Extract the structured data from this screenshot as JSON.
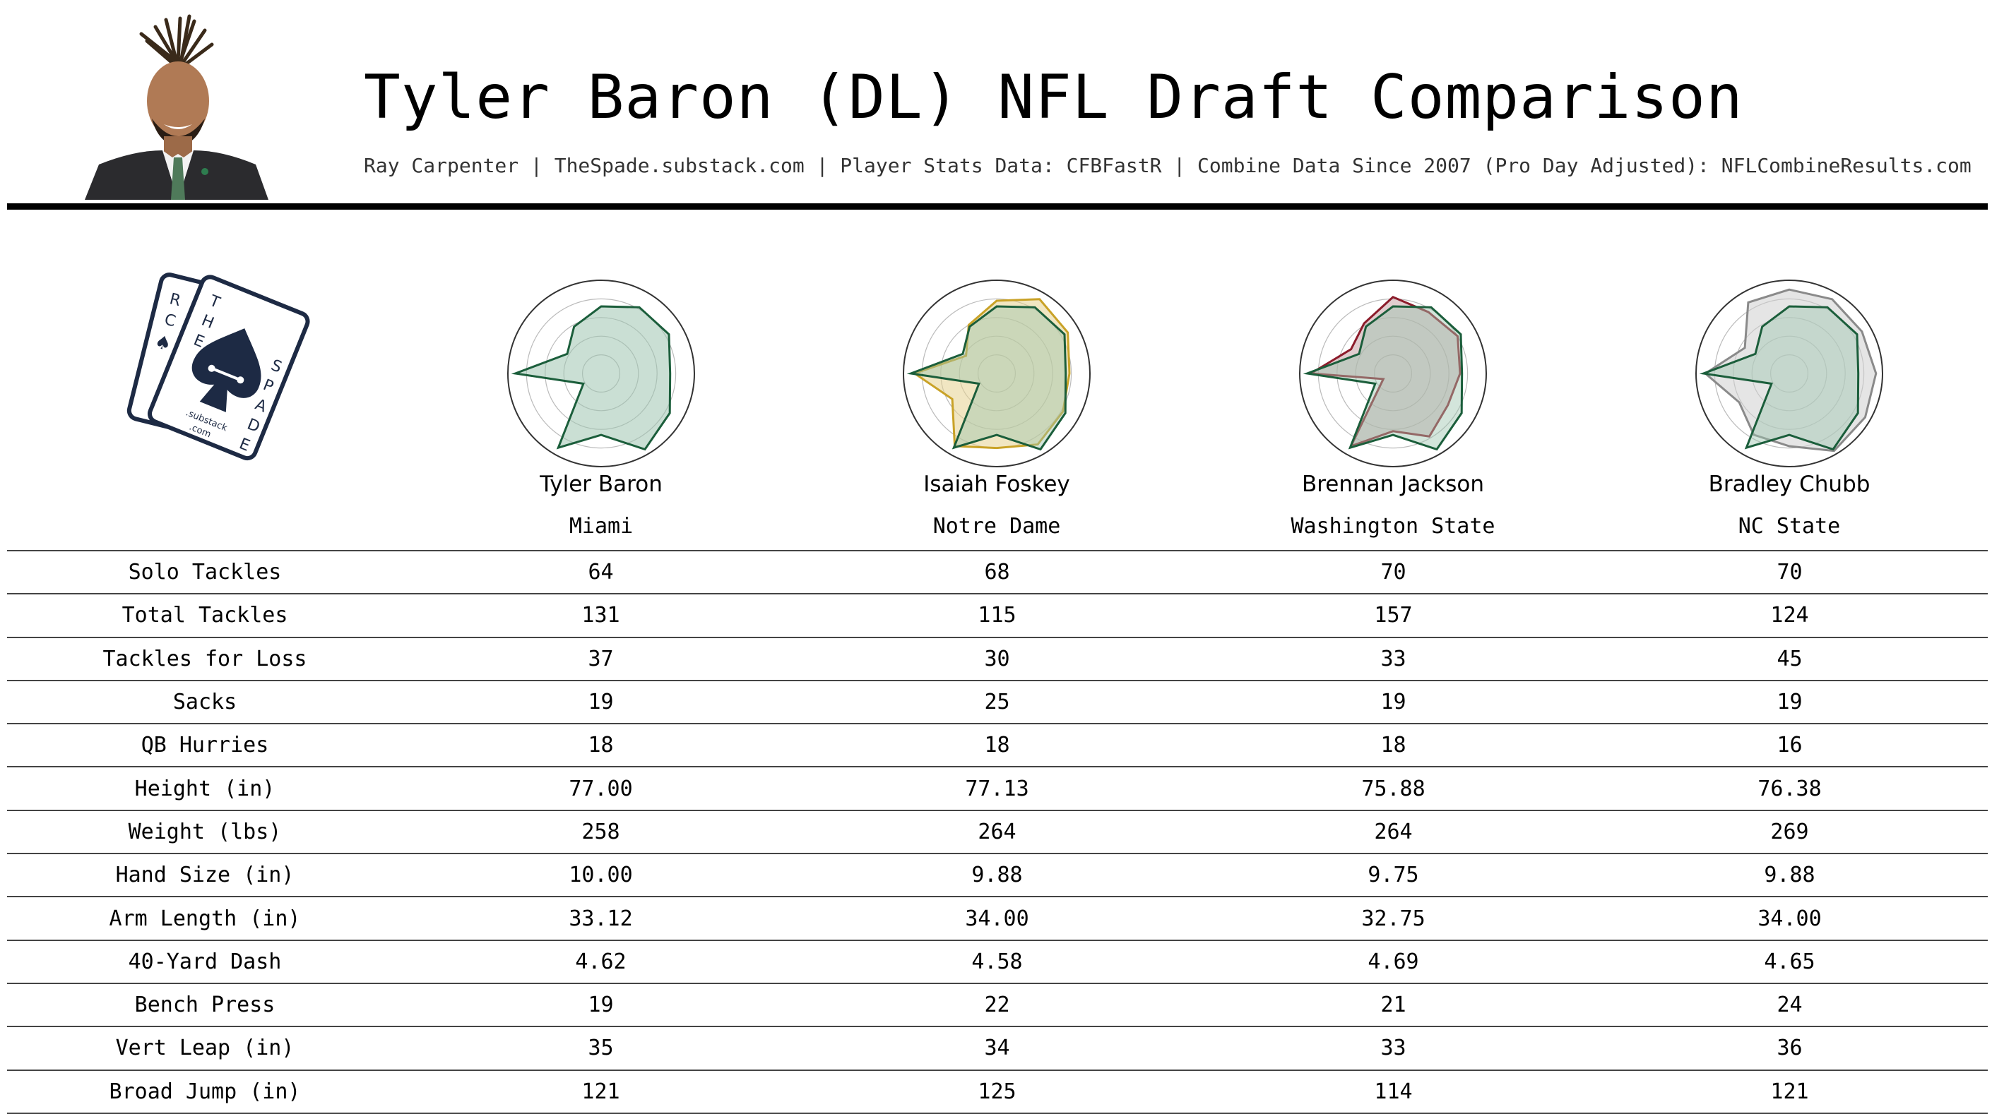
{
  "header": {
    "title": "Tyler Baron (DL) NFL Draft Comparison",
    "subtitle": "Ray Carpenter | TheSpade.substack.com | Player Stats Data: CFBFastR | Combine Data Since 2007 (Pro Day Adjusted): NFLCombineResults.com"
  },
  "logo": {
    "text_left_card": [
      "R",
      "C"
    ],
    "text_main_card": [
      "T",
      "H",
      "E",
      "S",
      "P",
      "A",
      "D",
      "E"
    ],
    "substack_text": [
      ".substack",
      ".com"
    ]
  },
  "chart_data": {
    "type": "table",
    "radar_axes_count": 12,
    "players": [
      {
        "name": "Tyler Baron",
        "school": "Miami",
        "color": "#1b5e3b",
        "fill": "#9ec5b0",
        "radar": [
          0.72,
          0.82,
          0.84,
          0.74,
          0.85,
          0.94,
          0.66,
          0.92,
          0.22,
          0.92,
          0.42,
          0.58
        ]
      },
      {
        "name": "Isaiah Foskey",
        "school": "Notre Dame",
        "color": "#c9a227",
        "fill": "#e6d28f",
        "radar": [
          0.78,
          0.92,
          0.88,
          0.78,
          0.82,
          0.88,
          0.8,
          0.9,
          0.55,
          0.88,
          0.38,
          0.6
        ]
      },
      {
        "name": "Brennan Jackson",
        "school": "Washington State",
        "color": "#8c1c2b",
        "fill": "#c8a4a8",
        "radar": [
          0.82,
          0.76,
          0.8,
          0.72,
          0.68,
          0.78,
          0.62,
          0.9,
          0.12,
          0.88,
          0.52,
          0.62
        ]
      },
      {
        "name": "Bradley Chubb",
        "school": "NC State",
        "color": "#8a8a8a",
        "fill": "#cfcfcf",
        "radar": [
          0.9,
          0.92,
          0.9,
          0.93,
          0.94,
          0.96,
          0.78,
          0.76,
          0.62,
          0.9,
          0.55,
          0.88
        ]
      }
    ],
    "comparison_color": "#1b5e3b",
    "rows": [
      {
        "label": "Solo Tackles",
        "values": [
          "64",
          "68",
          "70",
          "70"
        ]
      },
      {
        "label": "Total Tackles",
        "values": [
          "131",
          "115",
          "157",
          "124"
        ]
      },
      {
        "label": "Tackles for Loss",
        "values": [
          "37",
          "30",
          "33",
          "45"
        ]
      },
      {
        "label": "Sacks",
        "values": [
          "19",
          "25",
          "19",
          "19"
        ]
      },
      {
        "label": "QB Hurries",
        "values": [
          "18",
          "18",
          "18",
          "16"
        ]
      },
      {
        "label": "Height (in)",
        "values": [
          "77.00",
          "77.13",
          "75.88",
          "76.38"
        ]
      },
      {
        "label": "Weight (lbs)",
        "values": [
          "258",
          "264",
          "264",
          "269"
        ]
      },
      {
        "label": "Hand Size (in)",
        "values": [
          "10.00",
          "9.88",
          "9.75",
          "9.88"
        ]
      },
      {
        "label": "Arm Length (in)",
        "values": [
          "33.12",
          "34.00",
          "32.75",
          "34.00"
        ]
      },
      {
        "label": "40-Yard Dash",
        "values": [
          "4.62",
          "4.58",
          "4.69",
          "4.65"
        ]
      },
      {
        "label": "Bench Press",
        "values": [
          "19",
          "22",
          "21",
          "24"
        ]
      },
      {
        "label": "Vert Leap (in)",
        "values": [
          "35",
          "34",
          "33",
          "36"
        ]
      },
      {
        "label": "Broad Jump (in)",
        "values": [
          "121",
          "125",
          "114",
          "121"
        ]
      }
    ]
  }
}
